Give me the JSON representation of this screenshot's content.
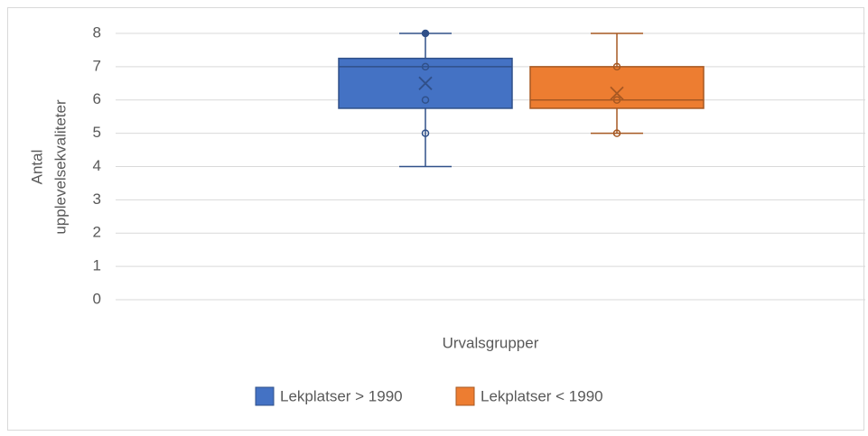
{
  "chart_data": {
    "type": "box",
    "ylabel_lines": [
      "Antal",
      "upplevelsekvaliteter"
    ],
    "xlabel": "Urvalsgrupper",
    "ylim": [
      0,
      8
    ],
    "yticks": [
      0,
      1,
      2,
      3,
      4,
      5,
      6,
      7,
      8
    ],
    "grid": true,
    "legend": "bottom",
    "series": [
      {
        "name": "Lekplatser > 1990",
        "color": "#4472c4",
        "min": 4,
        "q1": 5.75,
        "median": 7,
        "q3": 7.25,
        "max": 8,
        "mean": 6.5,
        "points": [
          8,
          7,
          6,
          5
        ]
      },
      {
        "name": "Lekplatser < 1990",
        "color": "#ed7d31",
        "min": 5,
        "q1": 5.75,
        "median": 6,
        "q3": 7,
        "max": 8,
        "mean": 6.2,
        "points": [
          7,
          6,
          5
        ]
      }
    ]
  }
}
